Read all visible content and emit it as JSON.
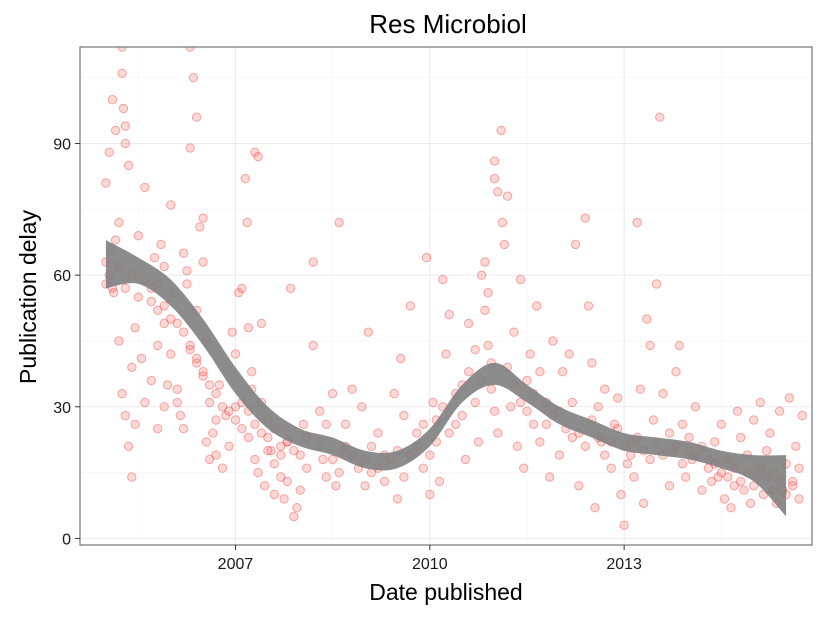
{
  "chart_data": {
    "type": "scatter",
    "title": "Res Microbiol",
    "xlabel": "Date published",
    "ylabel": "Publication delay",
    "x_unit": "year",
    "xlim": [
      2004.6,
      2015.9
    ],
    "ylim": [
      -1.5,
      112
    ],
    "x_ticks": [
      {
        "value": 2007,
        "label": "2007"
      },
      {
        "value": 2010,
        "label": "2010"
      },
      {
        "value": 2013,
        "label": "2013"
      }
    ],
    "y_ticks": [
      {
        "value": 0,
        "label": "0"
      },
      {
        "value": 30,
        "label": "30"
      },
      {
        "value": 60,
        "label": "60"
      },
      {
        "value": 90,
        "label": "90"
      }
    ],
    "grid": true,
    "legend": "none",
    "point_color": "#f8766d",
    "point_stroke": "#e41a1c",
    "smooth_color": "#808080",
    "smooth": {
      "x": [
        2005.0,
        2005.5,
        2006.0,
        2006.5,
        2007.0,
        2007.5,
        2008.0,
        2008.5,
        2009.0,
        2009.5,
        2010.0,
        2010.5,
        2011.0,
        2011.5,
        2012.0,
        2012.5,
        2013.0,
        2013.5,
        2014.0,
        2014.5,
        2015.0,
        2015.5
      ],
      "y": [
        62,
        61,
        56,
        47,
        36,
        27,
        23,
        21,
        18,
        18,
        23,
        33,
        37,
        33,
        28,
        25,
        22,
        21,
        20,
        18,
        16,
        12
      ],
      "ci_low": [
        57,
        58,
        53,
        44,
        33,
        25,
        21,
        19,
        16,
        16,
        21,
        31,
        35,
        31,
        26,
        23,
        20,
        19,
        18,
        16,
        13,
        5
      ],
      "ci_high": [
        68,
        64,
        59,
        50,
        39,
        30,
        25,
        23,
        20,
        20,
        25,
        35,
        40,
        35,
        30,
        27,
        24,
        23,
        22,
        20,
        19,
        19
      ]
    },
    "points": [
      [
        2005.0,
        81
      ],
      [
        2005.05,
        88
      ],
      [
        2005.1,
        100
      ],
      [
        2005.15,
        93
      ],
      [
        2005.2,
        72
      ],
      [
        2005.25,
        112
      ],
      [
        2005.25,
        106
      ],
      [
        2005.27,
        98
      ],
      [
        2005.3,
        94
      ],
      [
        2005.3,
        90
      ],
      [
        2005.35,
        85
      ],
      [
        2005.0,
        63
      ],
      [
        2005.05,
        60
      ],
      [
        2005.1,
        57
      ],
      [
        2005.12,
        56
      ],
      [
        2005.15,
        68
      ],
      [
        2005.2,
        45
      ],
      [
        2005.25,
        33
      ],
      [
        2005.3,
        28
      ],
      [
        2005.35,
        21
      ],
      [
        2005.4,
        14
      ],
      [
        2005.45,
        26
      ],
      [
        2005.4,
        39
      ],
      [
        2005.45,
        48
      ],
      [
        2005.5,
        69
      ],
      [
        2005.55,
        41
      ],
      [
        2005.6,
        80
      ],
      [
        2005.7,
        57
      ],
      [
        2005.75,
        64
      ],
      [
        2005.8,
        52
      ],
      [
        2005.85,
        67
      ],
      [
        2005.9,
        62
      ],
      [
        2005.95,
        35
      ],
      [
        2005.8,
        44
      ],
      [
        2005.9,
        30
      ],
      [
        2006.0,
        76
      ],
      [
        2006.05,
        56
      ],
      [
        2006.1,
        34
      ],
      [
        2006.15,
        28
      ],
      [
        2006.2,
        25
      ],
      [
        2006.25,
        61
      ],
      [
        2006.3,
        112
      ],
      [
        2006.35,
        105
      ],
      [
        2006.4,
        96
      ],
      [
        2006.3,
        89
      ],
      [
        2006.5,
        73
      ],
      [
        2006.45,
        71
      ],
      [
        2006.5,
        63
      ],
      [
        2006.55,
        45
      ],
      [
        2006.4,
        40
      ],
      [
        2006.5,
        37
      ],
      [
        2006.55,
        22
      ],
      [
        2006.6,
        18
      ],
      [
        2006.7,
        27
      ],
      [
        2006.75,
        35
      ],
      [
        2006.8,
        16
      ],
      [
        2006.9,
        21
      ],
      [
        2006.95,
        47
      ],
      [
        2007.0,
        30
      ],
      [
        2007.05,
        56
      ],
      [
        2007.1,
        57
      ],
      [
        2007.15,
        82
      ],
      [
        2007.18,
        72
      ],
      [
        2007.2,
        48
      ],
      [
        2007.25,
        34
      ],
      [
        2007.3,
        88
      ],
      [
        2007.35,
        87
      ],
      [
        2007.4,
        49
      ],
      [
        2007.2,
        23
      ],
      [
        2007.3,
        18
      ],
      [
        2007.35,
        15
      ],
      [
        2007.45,
        12
      ],
      [
        2007.5,
        27
      ],
      [
        2007.55,
        20
      ],
      [
        2007.6,
        10
      ],
      [
        2007.7,
        14
      ],
      [
        2007.75,
        9
      ],
      [
        2007.8,
        22
      ],
      [
        2007.85,
        57
      ],
      [
        2007.9,
        5
      ],
      [
        2007.95,
        7
      ],
      [
        2008.0,
        11
      ],
      [
        2008.05,
        26
      ],
      [
        2008.1,
        16
      ],
      [
        2008.2,
        44
      ],
      [
        2008.2,
        63
      ],
      [
        2008.3,
        29
      ],
      [
        2008.35,
        18
      ],
      [
        2008.4,
        14
      ],
      [
        2008.5,
        33
      ],
      [
        2008.55,
        12
      ],
      [
        2008.6,
        72
      ],
      [
        2008.65,
        20
      ],
      [
        2008.7,
        26
      ],
      [
        2008.8,
        34
      ],
      [
        2008.9,
        16
      ],
      [
        2008.95,
        30
      ],
      [
        2009.0,
        12
      ],
      [
        2009.05,
        47
      ],
      [
        2009.1,
        21
      ],
      [
        2009.2,
        16
      ],
      [
        2009.3,
        13
      ],
      [
        2009.4,
        18
      ],
      [
        2009.45,
        33
      ],
      [
        2009.5,
        9
      ],
      [
        2009.55,
        41
      ],
      [
        2009.6,
        28
      ],
      [
        2009.7,
        53
      ],
      [
        2009.8,
        24
      ],
      [
        2009.9,
        16
      ],
      [
        2009.95,
        64
      ],
      [
        2010.0,
        10
      ],
      [
        2010.05,
        31
      ],
      [
        2010.1,
        22
      ],
      [
        2010.15,
        13
      ],
      [
        2010.2,
        59
      ],
      [
        2010.25,
        42
      ],
      [
        2010.3,
        51
      ],
      [
        2010.4,
        26
      ],
      [
        2010.5,
        35
      ],
      [
        2010.55,
        18
      ],
      [
        2010.6,
        49
      ],
      [
        2010.7,
        31
      ],
      [
        2010.75,
        22
      ],
      [
        2010.8,
        60
      ],
      [
        2010.85,
        52
      ],
      [
        2010.9,
        44
      ],
      [
        2010.95,
        34
      ],
      [
        2011.0,
        29
      ],
      [
        2011.05,
        24
      ],
      [
        2010.85,
        63
      ],
      [
        2010.9,
        56
      ],
      [
        2010.95,
        40
      ],
      [
        2011.0,
        86
      ],
      [
        2011.0,
        82
      ],
      [
        2011.05,
        79
      ],
      [
        2011.1,
        93
      ],
      [
        2011.12,
        72
      ],
      [
        2011.15,
        67
      ],
      [
        2011.2,
        78
      ],
      [
        2011.25,
        30
      ],
      [
        2011.3,
        47
      ],
      [
        2011.35,
        21
      ],
      [
        2011.4,
        59
      ],
      [
        2011.45,
        16
      ],
      [
        2011.5,
        36
      ],
      [
        2011.55,
        42
      ],
      [
        2011.6,
        26
      ],
      [
        2011.65,
        53
      ],
      [
        2011.7,
        22
      ],
      [
        2011.8,
        31
      ],
      [
        2011.85,
        14
      ],
      [
        2011.9,
        45
      ],
      [
        2012.0,
        19
      ],
      [
        2012.05,
        38
      ],
      [
        2012.15,
        42
      ],
      [
        2012.2,
        23
      ],
      [
        2012.25,
        67
      ],
      [
        2012.3,
        12
      ],
      [
        2012.4,
        73
      ],
      [
        2012.45,
        53
      ],
      [
        2012.5,
        40
      ],
      [
        2012.55,
        7
      ],
      [
        2012.6,
        30
      ],
      [
        2012.65,
        22
      ],
      [
        2012.7,
        34
      ],
      [
        2012.8,
        16
      ],
      [
        2012.85,
        26
      ],
      [
        2012.9,
        32
      ],
      [
        2012.95,
        10
      ],
      [
        2013.0,
        3
      ],
      [
        2013.05,
        17
      ],
      [
        2013.1,
        22
      ],
      [
        2013.15,
        14
      ],
      [
        2013.2,
        72
      ],
      [
        2013.25,
        34
      ],
      [
        2013.3,
        8
      ],
      [
        2013.35,
        50
      ],
      [
        2013.4,
        44
      ],
      [
        2013.45,
        27
      ],
      [
        2013.5,
        58
      ],
      [
        2013.55,
        96
      ],
      [
        2013.6,
        33
      ],
      [
        2013.7,
        12
      ],
      [
        2013.75,
        20
      ],
      [
        2013.8,
        38
      ],
      [
        2013.85,
        44
      ],
      [
        2013.9,
        26
      ],
      [
        2013.95,
        14
      ],
      [
        2014.0,
        20
      ],
      [
        2014.05,
        18
      ],
      [
        2014.1,
        30
      ],
      [
        2014.2,
        11
      ],
      [
        2014.3,
        16
      ],
      [
        2014.35,
        13
      ],
      [
        2014.4,
        22
      ],
      [
        2014.45,
        14
      ],
      [
        2014.5,
        26
      ],
      [
        2014.55,
        9
      ],
      [
        2014.6,
        18
      ],
      [
        2014.65,
        7
      ],
      [
        2014.7,
        12
      ],
      [
        2014.75,
        29
      ],
      [
        2014.8,
        23
      ],
      [
        2014.85,
        11
      ],
      [
        2014.9,
        19
      ],
      [
        2014.95,
        8
      ],
      [
        2015.0,
        27
      ],
      [
        2015.05,
        14
      ],
      [
        2015.1,
        31
      ],
      [
        2015.15,
        10
      ],
      [
        2015.2,
        20
      ],
      [
        2015.25,
        24
      ],
      [
        2015.3,
        15
      ],
      [
        2015.35,
        8
      ],
      [
        2015.4,
        29
      ],
      [
        2015.45,
        11
      ],
      [
        2015.5,
        17
      ],
      [
        2015.55,
        32
      ],
      [
        2015.6,
        13
      ],
      [
        2015.65,
        21
      ],
      [
        2015.7,
        16
      ],
      [
        2015.75,
        28
      ],
      [
        2005.6,
        31
      ],
      [
        2005.7,
        36
      ],
      [
        2005.8,
        25
      ],
      [
        2005.9,
        49
      ],
      [
        2006.0,
        42
      ],
      [
        2006.1,
        31
      ],
      [
        2006.2,
        65
      ],
      [
        2006.25,
        58
      ],
      [
        2006.3,
        44
      ],
      [
        2006.4,
        52
      ],
      [
        2006.6,
        31
      ],
      [
        2006.65,
        24
      ],
      [
        2006.7,
        19
      ],
      [
        2006.85,
        28
      ],
      [
        2007.0,
        42
      ],
      [
        2007.1,
        25
      ],
      [
        2007.25,
        38
      ],
      [
        2007.4,
        31
      ],
      [
        2007.5,
        20
      ],
      [
        2007.6,
        17
      ],
      [
        2007.7,
        21
      ],
      [
        2007.8,
        13
      ],
      [
        2008.0,
        19
      ],
      [
        2008.1,
        23
      ],
      [
        2008.3,
        21
      ],
      [
        2008.4,
        26
      ],
      [
        2008.5,
        18
      ],
      [
        2008.6,
        15
      ],
      [
        2008.7,
        21
      ],
      [
        2008.8,
        19
      ],
      [
        2009.0,
        18
      ],
      [
        2009.1,
        15
      ],
      [
        2009.2,
        24
      ],
      [
        2009.3,
        19
      ],
      [
        2009.5,
        20
      ],
      [
        2009.6,
        14
      ],
      [
        2009.7,
        19
      ],
      [
        2009.8,
        21
      ],
      [
        2009.9,
        26
      ],
      [
        2010.0,
        19
      ],
      [
        2010.1,
        27
      ],
      [
        2010.2,
        30
      ],
      [
        2010.3,
        24
      ],
      [
        2010.4,
        33
      ],
      [
        2010.5,
        28
      ],
      [
        2010.6,
        38
      ],
      [
        2010.7,
        43
      ],
      [
        2010.8,
        36
      ],
      [
        2011.2,
        39
      ],
      [
        2011.3,
        35
      ],
      [
        2011.4,
        31
      ],
      [
        2011.5,
        29
      ],
      [
        2011.6,
        33
      ],
      [
        2011.7,
        38
      ],
      [
        2011.8,
        26
      ],
      [
        2011.9,
        28
      ],
      [
        2012.0,
        29
      ],
      [
        2012.1,
        25
      ],
      [
        2012.2,
        31
      ],
      [
        2012.3,
        24
      ],
      [
        2012.4,
        21
      ],
      [
        2012.5,
        27
      ],
      [
        2012.6,
        23
      ],
      [
        2012.7,
        19
      ],
      [
        2012.8,
        22
      ],
      [
        2012.9,
        25
      ],
      [
        2013.0,
        21
      ],
      [
        2013.1,
        19
      ],
      [
        2013.2,
        23
      ],
      [
        2013.3,
        20
      ],
      [
        2013.4,
        18
      ],
      [
        2013.5,
        22
      ],
      [
        2013.6,
        19
      ],
      [
        2013.7,
        24
      ],
      [
        2013.8,
        21
      ],
      [
        2013.9,
        17
      ],
      [
        2014.0,
        23
      ],
      [
        2014.1,
        19
      ],
      [
        2014.2,
        21
      ],
      [
        2014.3,
        18
      ],
      [
        2014.4,
        17
      ],
      [
        2014.5,
        15
      ],
      [
        2014.6,
        14
      ],
      [
        2014.7,
        16
      ],
      [
        2014.8,
        13
      ],
      [
        2014.9,
        15
      ],
      [
        2015.0,
        12
      ],
      [
        2015.1,
        16
      ],
      [
        2015.2,
        14
      ],
      [
        2015.3,
        11
      ],
      [
        2015.4,
        13
      ],
      [
        2015.5,
        10
      ],
      [
        2015.6,
        12
      ],
      [
        2015.7,
        9
      ],
      [
        2005.0,
        58
      ],
      [
        2005.1,
        66
      ],
      [
        2005.2,
        62
      ],
      [
        2005.3,
        57
      ],
      [
        2005.4,
        60
      ],
      [
        2005.5,
        55
      ],
      [
        2005.6,
        59
      ],
      [
        2005.7,
        54
      ],
      [
        2005.8,
        58
      ],
      [
        2005.9,
        53
      ],
      [
        2006.0,
        50
      ],
      [
        2006.1,
        49
      ],
      [
        2006.2,
        47
      ],
      [
        2006.3,
        43
      ],
      [
        2006.4,
        41
      ],
      [
        2006.5,
        38
      ],
      [
        2006.6,
        35
      ],
      [
        2006.7,
        33
      ],
      [
        2006.8,
        30
      ],
      [
        2006.9,
        29
      ],
      [
        2007.0,
        27
      ],
      [
        2007.1,
        31
      ],
      [
        2007.2,
        29
      ],
      [
        2007.3,
        26
      ],
      [
        2007.4,
        24
      ],
      [
        2007.5,
        23
      ],
      [
        2007.6,
        25
      ],
      [
        2007.7,
        19
      ],
      [
        2007.8,
        22
      ],
      [
        2007.9,
        20
      ]
    ]
  }
}
